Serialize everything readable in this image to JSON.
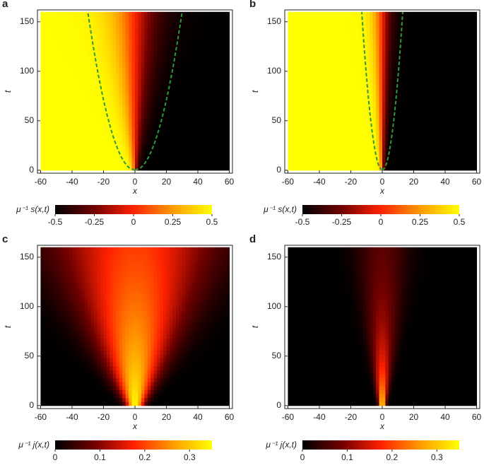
{
  "chart_data": [
    {
      "type": "heatmap",
      "panel": "a",
      "xlabel": "x",
      "ylabel": "t",
      "xlim": [
        -62,
        62
      ],
      "ylim": [
        -3,
        162
      ],
      "xticks": [
        -60,
        -40,
        -20,
        0,
        20,
        40,
        60
      ],
      "yticks": [
        0,
        50,
        100,
        150
      ],
      "colorbar_label": "μ⁻¹ s(x,t)",
      "clim": [
        -0.5,
        0.5
      ],
      "cticks": [
        -0.5,
        -0.25,
        0,
        0.25,
        0.5
      ]
    },
    {
      "type": "heatmap",
      "panel": "b",
      "xlabel": "x",
      "ylabel": "t",
      "xlim": [
        -62,
        62
      ],
      "ylim": [
        -3,
        162
      ],
      "xticks": [
        -60,
        -40,
        -20,
        0,
        20,
        40,
        60
      ],
      "yticks": [
        0,
        50,
        100,
        150
      ],
      "colorbar_label": "μ⁻¹ s(x,t)",
      "clim": [
        -0.5,
        0.5
      ],
      "cticks": [
        -0.5,
        -0.25,
        0,
        0.25,
        0.5
      ]
    },
    {
      "type": "heatmap",
      "panel": "c",
      "xlabel": "x",
      "ylabel": "t",
      "xlim": [
        -62,
        62
      ],
      "ylim": [
        -3,
        162
      ],
      "xticks": [
        -60,
        -40,
        -20,
        0,
        20,
        40,
        60
      ],
      "yticks": [
        0,
        50,
        100,
        150
      ],
      "colorbar_label": "μ⁻¹ j(x,t)",
      "clim": [
        0,
        0.35
      ],
      "cticks": [
        0,
        0.1,
        0.2,
        0.3
      ]
    },
    {
      "type": "heatmap",
      "panel": "d",
      "xlabel": "x",
      "ylabel": "t",
      "xlim": [
        -62,
        62
      ],
      "ylim": [
        -3,
        162
      ],
      "xticks": [
        -60,
        -40,
        -20,
        0,
        20,
        40,
        60
      ],
      "yticks": [
        0,
        50,
        100,
        150
      ],
      "colorbar_label": "μ⁻¹ j(x,t)",
      "clim": [
        0,
        0.35
      ],
      "cticks": [
        0,
        0.1,
        0.2,
        0.3
      ]
    }
  ]
}
